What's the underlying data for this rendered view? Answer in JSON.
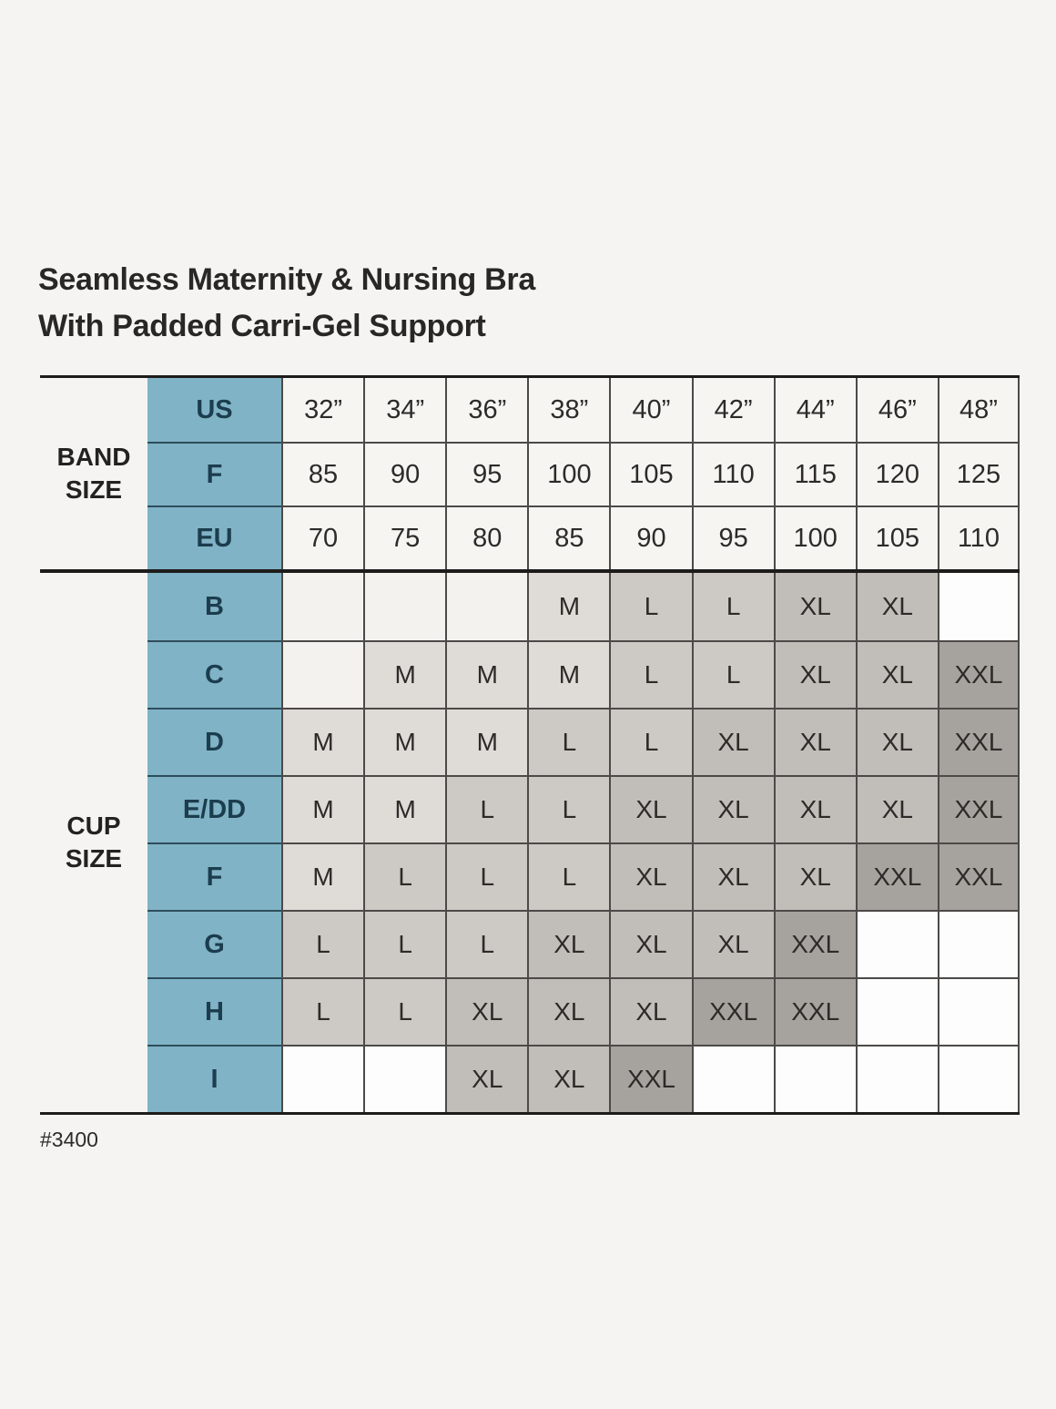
{
  "page": {
    "title_line1": "Seamless Maternity & Nursing Bra",
    "title_line2": "With Padded Carri-Gel Support",
    "footnote": "#3400"
  },
  "colors": {
    "background": "#f5f4f2",
    "header_column_blue": "#80b3c6",
    "header_column_text": "#1c3d4e",
    "band_cell_background": "#f7f5f2",
    "thin_border": "#4c4a48",
    "thick_rule": "#1d1c1b",
    "cell_text": "#2d2b29",
    "size_cell_colors": {
      "M": "#dfdbd6",
      "L": "#cdc9c4",
      "XL": "#c1bdb8",
      "XXL": "#a6a29d"
    }
  },
  "chart_data": {
    "type": "table",
    "title": "Seamless Maternity & Nursing Bra With Padded Carri-Gel Support",
    "band_size_label": "BAND\nSIZE",
    "cup_size_label": "CUP\nSIZE",
    "band_rows": [
      {
        "label": "US",
        "values": [
          "32”",
          "34”",
          "36”",
          "38”",
          "40”",
          "42”",
          "44”",
          "46”",
          "48”"
        ]
      },
      {
        "label": "F",
        "values": [
          "85",
          "90",
          "95",
          "100",
          "105",
          "110",
          "115",
          "120",
          "125"
        ]
      },
      {
        "label": "EU",
        "values": [
          "70",
          "75",
          "80",
          "85",
          "90",
          "95",
          "100",
          "105",
          "110"
        ]
      }
    ],
    "cup_rows": [
      {
        "label": "B",
        "cells": [
          "",
          "",
          "",
          "M",
          "L",
          "L",
          "XL",
          "XL",
          ""
        ]
      },
      {
        "label": "C",
        "cells": [
          "",
          "M",
          "M",
          "M",
          "L",
          "L",
          "XL",
          "XL",
          "XXL"
        ]
      },
      {
        "label": "D",
        "cells": [
          "M",
          "M",
          "M",
          "L",
          "L",
          "XL",
          "XL",
          "XL",
          "XXL"
        ]
      },
      {
        "label": "E/DD",
        "cells": [
          "M",
          "M",
          "L",
          "L",
          "XL",
          "XL",
          "XL",
          "XL",
          "XXL"
        ]
      },
      {
        "label": "F",
        "cells": [
          "M",
          "L",
          "L",
          "L",
          "XL",
          "XL",
          "XL",
          "XXL",
          "XXL"
        ]
      },
      {
        "label": "G",
        "cells": [
          "L",
          "L",
          "L",
          "XL",
          "XL",
          "XL",
          "XXL",
          "",
          ""
        ]
      },
      {
        "label": "H",
        "cells": [
          "L",
          "L",
          "XL",
          "XL",
          "XL",
          "XXL",
          "XXL",
          "",
          ""
        ]
      },
      {
        "label": "I",
        "cells": [
          "",
          "",
          "XL",
          "XL",
          "XXL",
          "",
          "",
          "",
          ""
        ]
      }
    ],
    "cream_empty_cells": {
      "B": [
        0,
        1,
        2
      ],
      "C": [
        0
      ]
    },
    "footnote": "#3400"
  }
}
